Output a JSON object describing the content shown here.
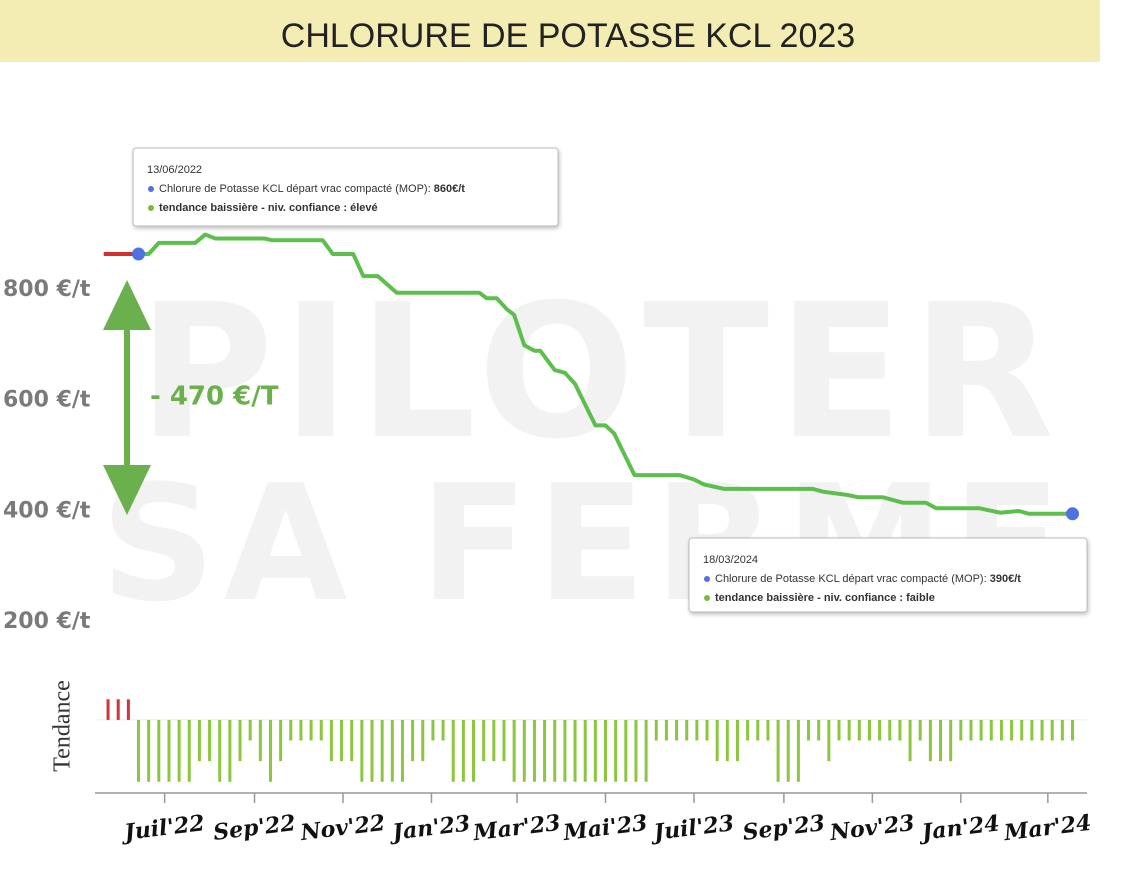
{
  "chart_data": [
    {
      "type": "line",
      "title": "CHLORURE DE POTASSE KCL 2023",
      "watermark": [
        "PILOTER",
        "SA FERME"
      ],
      "annotation": "- 470 €/T",
      "xlim": [
        "2022-05-14",
        "2024-03-28"
      ],
      "ylim": [
        140,
        945
      ],
      "yticks": [
        {
          "value": 200,
          "label": "200 €/t"
        },
        {
          "value": 400,
          "label": "400 €/t"
        },
        {
          "value": 600,
          "label": "600 €/t"
        },
        {
          "value": 800,
          "label": "800 €/t"
        }
      ],
      "grid": true,
      "series": [
        {
          "color": "#d32f2f",
          "x": [
            "2022-05-20",
            "2022-06-13"
          ],
          "values": [
            860,
            860
          ]
        },
        {
          "color": "#5cbf4c",
          "marker_color": "#4f72e3",
          "x": [
            "2022-06-13",
            "2022-06-20",
            "2022-06-27",
            "2022-07-22",
            "2022-07-29",
            "2022-08-05",
            "2022-09-08",
            "2022-09-13",
            "2022-10-18",
            "2022-10-25",
            "2022-11-08",
            "2022-11-15",
            "2022-11-25",
            "2022-12-08",
            "2023-02-03",
            "2023-02-08",
            "2023-02-15",
            "2023-02-22",
            "2023-02-27",
            "2023-03-06",
            "2023-03-13",
            "2023-03-17",
            "2023-03-27",
            "2023-04-03",
            "2023-04-10",
            "2023-04-24",
            "2023-05-01",
            "2023-05-07",
            "2023-05-21",
            "2023-06-21",
            "2023-07-01",
            "2023-07-08",
            "2023-07-22",
            "2023-09-21",
            "2023-09-28",
            "2023-10-15",
            "2023-10-22",
            "2023-11-08",
            "2023-11-22",
            "2023-12-08",
            "2023-12-15",
            "2024-01-14",
            "2024-01-28",
            "2024-02-10",
            "2024-02-17",
            "2024-03-18"
          ],
          "values": [
            860,
            860,
            880,
            880,
            895,
            888,
            888,
            885,
            885,
            860,
            860,
            820,
            820,
            790,
            790,
            780,
            780,
            760,
            750,
            695,
            685,
            685,
            650,
            645,
            625,
            550,
            550,
            535,
            460,
            460,
            452,
            443,
            435,
            435,
            430,
            424,
            420,
            420,
            410,
            410,
            400,
            400,
            392,
            395,
            390,
            390
          ]
        }
      ],
      "tooltips": [
        {
          "date": "13/06/2022",
          "line": "Chlorure de Potasse KCL départ vrac compacté (MOP): ",
          "value_label": "860€/t",
          "trend": "tendance baissière - niv. confiance : élevé"
        },
        {
          "date": "18/03/2024",
          "line": "Chlorure de Potasse KCL départ vrac compacté (MOP): ",
          "value_label": "390€/t",
          "trend": "tendance baissière - niv. confiance : faible"
        }
      ]
    },
    {
      "type": "bar",
      "ylabel": "Tendance",
      "color": "#8cc63f",
      "positive_color": "#d0343c",
      "xlim": [
        "2022-05-14",
        "2024-03-28"
      ],
      "ylim": [
        -3.4,
        1.5
      ],
      "xticks": [
        {
          "value": "2022-07-01",
          "label": "Juil'22"
        },
        {
          "value": "2022-09-01",
          "label": "Sep'22"
        },
        {
          "value": "2022-11-01",
          "label": "Nov'22"
        },
        {
          "value": "2023-01-01",
          "label": "Jan'23"
        },
        {
          "value": "2023-03-01",
          "label": "Mar'23"
        },
        {
          "value": "2023-05-01",
          "label": "Mai'23"
        },
        {
          "value": "2023-07-01",
          "label": "Juil'23"
        },
        {
          "value": "2023-09-01",
          "label": "Sep'23"
        },
        {
          "value": "2023-11-01",
          "label": "Nov'23"
        },
        {
          "value": "2024-01-01",
          "label": "Jan'24"
        },
        {
          "value": "2024-03-01",
          "label": "Mar'24"
        }
      ],
      "x": [
        "2022-05-23",
        "2022-05-30",
        "2022-06-06",
        "2022-06-13",
        "2022-06-20",
        "2022-06-27",
        "2022-07-04",
        "2022-07-11",
        "2022-07-18",
        "2022-07-25",
        "2022-08-01",
        "2022-08-08",
        "2022-08-15",
        "2022-08-22",
        "2022-08-29",
        "2022-09-05",
        "2022-09-12",
        "2022-09-19",
        "2022-09-26",
        "2022-10-03",
        "2022-10-10",
        "2022-10-17",
        "2022-10-24",
        "2022-10-31",
        "2022-11-07",
        "2022-11-14",
        "2022-11-21",
        "2022-11-28",
        "2022-12-05",
        "2022-12-12",
        "2022-12-19",
        "2022-12-26",
        "2023-01-02",
        "2023-01-09",
        "2023-01-16",
        "2023-01-23",
        "2023-01-30",
        "2023-02-06",
        "2023-02-13",
        "2023-02-20",
        "2023-02-27",
        "2023-03-06",
        "2023-03-13",
        "2023-03-20",
        "2023-03-27",
        "2023-04-03",
        "2023-04-10",
        "2023-04-17",
        "2023-04-24",
        "2023-05-01",
        "2023-05-08",
        "2023-05-15",
        "2023-05-22",
        "2023-05-29",
        "2023-06-05",
        "2023-06-12",
        "2023-06-19",
        "2023-06-26",
        "2023-07-03",
        "2023-07-10",
        "2023-07-17",
        "2023-07-24",
        "2023-07-31",
        "2023-08-07",
        "2023-08-14",
        "2023-08-21",
        "2023-08-28",
        "2023-09-04",
        "2023-09-11",
        "2023-09-18",
        "2023-09-25",
        "2023-10-02",
        "2023-10-09",
        "2023-10-16",
        "2023-10-23",
        "2023-10-30",
        "2023-11-06",
        "2023-11-13",
        "2023-11-20",
        "2023-11-27",
        "2023-12-04",
        "2023-12-11",
        "2023-12-18",
        "2023-12-25",
        "2024-01-01",
        "2024-01-08",
        "2024-01-15",
        "2024-01-22",
        "2024-01-29",
        "2024-02-05",
        "2024-02-12",
        "2024-02-19",
        "2024-02-26",
        "2024-03-04",
        "2024-03-11",
        "2024-03-18"
      ],
      "values": [
        1,
        1,
        1,
        -3,
        -3,
        -3,
        -3,
        -3,
        -3,
        -2,
        -2,
        -3,
        -3,
        -2,
        -1,
        -2,
        -3,
        -2,
        -1,
        -1,
        -1,
        -1,
        -2,
        -2,
        -2,
        -3,
        -3,
        -3,
        -3,
        -3,
        -2,
        -2,
        -1,
        -1,
        -3,
        -3,
        -3,
        -2,
        -2,
        -2,
        -3,
        -3,
        -3,
        -3,
        -3,
        -3,
        -3,
        -3,
        -3,
        -3,
        -3,
        -3,
        -3,
        -3,
        -1,
        -1,
        -1,
        -1,
        -1,
        -1,
        -2,
        -2,
        -2,
        -1,
        -1,
        -1,
        -3,
        -3,
        -3,
        -1,
        -1,
        -2,
        -1,
        -1,
        -1,
        -1,
        -1,
        -1,
        -1,
        -2,
        -1,
        -2,
        -2,
        -2,
        -1,
        -1,
        -1,
        -1,
        -1,
        -1,
        -1,
        -1,
        -1,
        -1,
        -1,
        -1
      ]
    }
  ]
}
